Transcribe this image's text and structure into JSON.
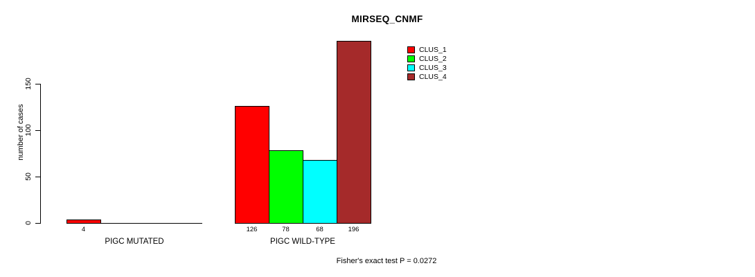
{
  "title": "MIRSEQ_CNMF",
  "footer_note": "Fisher's exact test P = 0.0272",
  "y_axis": {
    "label": "number of cases",
    "ticks": [
      0,
      50,
      100,
      150
    ]
  },
  "legend": {
    "items": [
      {
        "label": "CLUS_1",
        "color": "#FF0000"
      },
      {
        "label": "CLUS_2",
        "color": "#00FF00"
      },
      {
        "label": "CLUS_3",
        "color": "#00FFFF"
      },
      {
        "label": "CLUS_4",
        "color": "#A52A2A"
      }
    ]
  },
  "chart_data": {
    "type": "bar",
    "title": "MIRSEQ_CNMF",
    "xlabel": "",
    "ylabel": "number of cases",
    "ylim": [
      0,
      150
    ],
    "yticks": [
      0,
      50,
      100,
      150
    ],
    "grid": false,
    "legend_position": "top-right",
    "categories": [
      "PIGC MUTATED",
      "PIGC WILD-TYPE"
    ],
    "series": [
      {
        "name": "CLUS_1",
        "color": "#FF0000",
        "values": [
          4,
          126
        ]
      },
      {
        "name": "CLUS_2",
        "color": "#00FF00",
        "values": [
          0,
          78
        ]
      },
      {
        "name": "CLUS_3",
        "color": "#00FFFF",
        "values": [
          0,
          68
        ]
      },
      {
        "name": "CLUS_4",
        "color": "#A52A2A",
        "values": [
          0,
          196
        ]
      }
    ],
    "bar_value_labels_shown_when_nonzero": true,
    "annotation": "Fisher's exact test P = 0.0272"
  }
}
